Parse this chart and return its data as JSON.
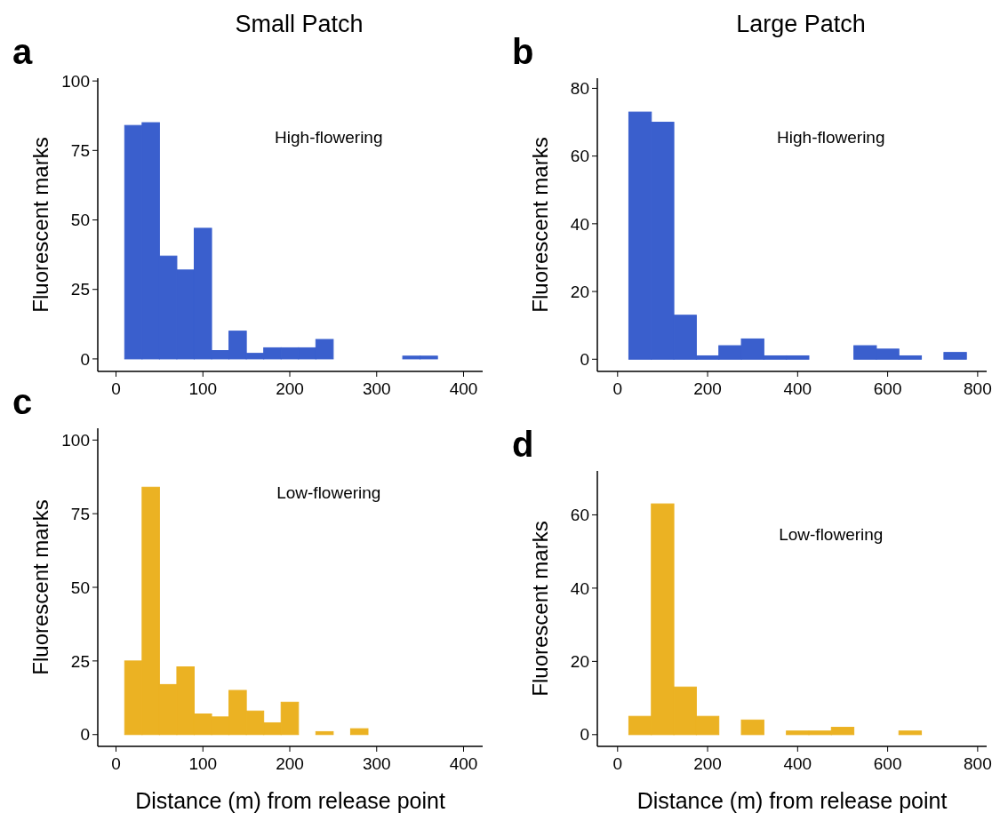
{
  "chart_data": [
    {
      "type": "histogram",
      "title": "Small Patch",
      "ylabel": "Fluorescent marks",
      "annotations": [
        "a",
        "High-flowering"
      ],
      "color": "#3a5fcd",
      "bins": [
        10,
        30,
        50,
        70,
        90,
        110,
        130,
        150,
        170,
        190,
        210,
        230,
        250,
        270,
        290,
        310,
        330,
        350,
        370,
        390
      ],
      "values": [
        84,
        85,
        37,
        32,
        47,
        3,
        10,
        2,
        4,
        4,
        4,
        7,
        0,
        0,
        0,
        0,
        1,
        1,
        0
      ],
      "xlim": [
        -21,
        422
      ],
      "xticks": [
        0,
        100,
        200,
        300,
        400
      ],
      "ylim": [
        -4.5,
        101
      ],
      "yticks": [
        0,
        25,
        50,
        75,
        100
      ],
      "grid": false
    },
    {
      "type": "histogram",
      "title": "Large Patch",
      "ylabel": "Fluorescent marks",
      "annotations": [
        "b",
        "High-flowering"
      ],
      "color": "#3a5fcd",
      "bins": [
        25,
        75,
        125,
        175,
        225,
        275,
        325,
        375,
        425,
        475,
        525,
        575,
        625,
        675,
        725,
        775
      ],
      "values": [
        73,
        70,
        13,
        1,
        4,
        6,
        1,
        1,
        0,
        0,
        4,
        3,
        1,
        0,
        2
      ],
      "xlim": [
        -45,
        820
      ],
      "xticks": [
        0,
        200,
        400,
        600,
        800
      ],
      "ylim": [
        -3.6,
        83
      ],
      "yticks": [
        0,
        20,
        40,
        60,
        80
      ],
      "grid": false
    },
    {
      "type": "histogram",
      "xlabel": "Distance (m) from release point",
      "ylabel": "Fluorescent marks",
      "annotations": [
        "c",
        "Low-flowering"
      ],
      "color": "#ebb223",
      "bins": [
        10,
        30,
        50,
        70,
        90,
        110,
        130,
        150,
        170,
        190,
        210,
        230,
        250,
        270,
        290,
        310,
        330,
        350,
        370,
        390
      ],
      "values": [
        25,
        84,
        17,
        23,
        7,
        6,
        15,
        8,
        4,
        11,
        0,
        1,
        0,
        2,
        0,
        0,
        0,
        0,
        0
      ],
      "xlim": [
        -21,
        422
      ],
      "xticks": [
        0,
        100,
        200,
        300,
        400
      ],
      "ylim": [
        -4,
        104
      ],
      "yticks": [
        0,
        25,
        50,
        75,
        100
      ],
      "grid": false
    },
    {
      "type": "histogram",
      "xlabel": "Distance (m) from release point",
      "ylabel": "Fluorescent marks",
      "annotations": [
        "d",
        "Low-flowering"
      ],
      "color": "#ebb223",
      "bins": [
        25,
        75,
        125,
        175,
        225,
        275,
        325,
        375,
        425,
        475,
        525,
        575,
        625,
        675,
        725,
        775
      ],
      "values": [
        5,
        63,
        13,
        5,
        0,
        4,
        0,
        1,
        1,
        2,
        0,
        0,
        1,
        0,
        0
      ],
      "xlim": [
        -45,
        820
      ],
      "xticks": [
        0,
        200,
        400,
        600,
        800
      ],
      "ylim": [
        -3.2,
        72
      ],
      "yticks": [
        0,
        20,
        40,
        60
      ],
      "grid": false
    }
  ]
}
